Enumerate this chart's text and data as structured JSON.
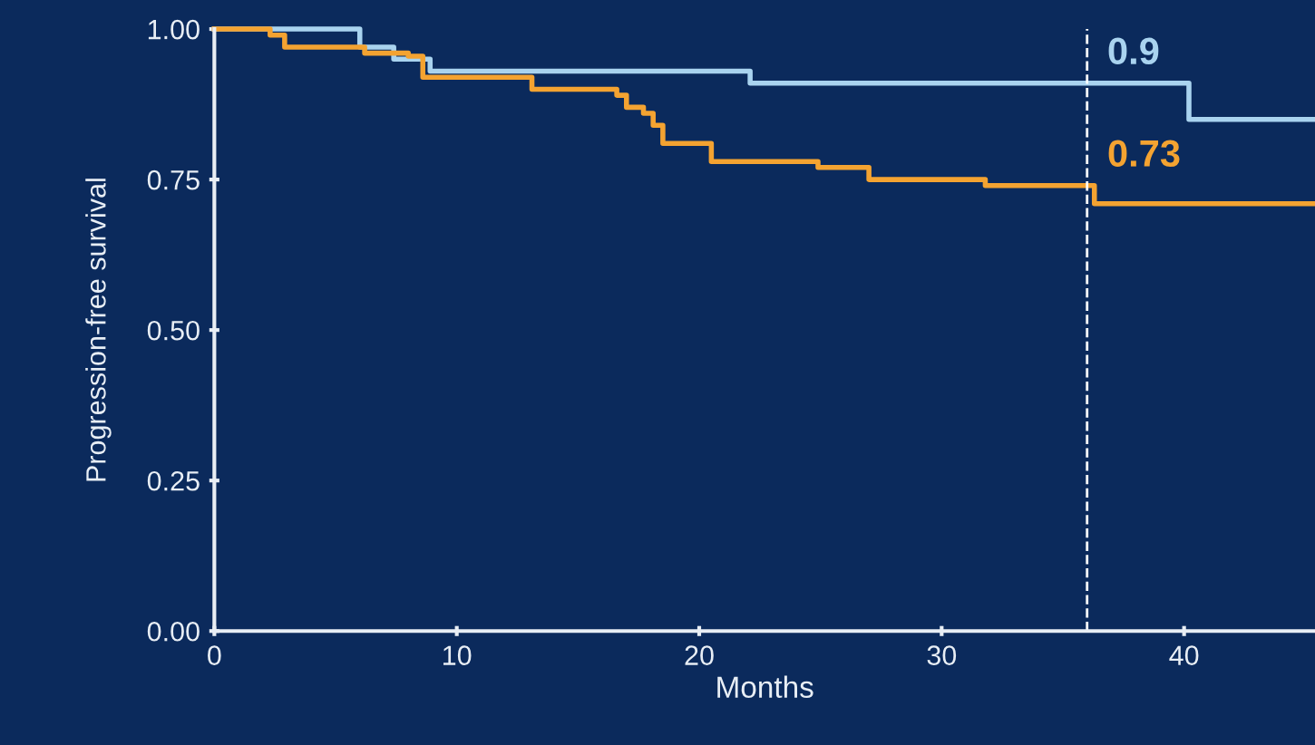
{
  "chart_data": {
    "type": "step",
    "xlabel": "Months",
    "ylabel": "Progression-free survival",
    "xlim": [
      0,
      45.4
    ],
    "ylim": [
      0,
      1
    ],
    "xticks": [
      0,
      10,
      20,
      30,
      40
    ],
    "yticks": [
      {
        "value": 0,
        "label": "0.00"
      },
      {
        "value": 0.25,
        "label": "0.25"
      },
      {
        "value": 0.5,
        "label": "0.50"
      },
      {
        "value": 0.75,
        "label": "0.75"
      },
      {
        "value": 1,
        "label": "1.00"
      }
    ],
    "grid": false,
    "marker": "none",
    "line_style": "solid",
    "series": [
      {
        "color": "#a9d3ef",
        "x": [
          0,
          6.0,
          7.4,
          8.9,
          22.1,
          40.2,
          45.4
        ],
        "values": [
          1.0,
          0.97,
          0.95,
          0.93,
          0.91,
          0.85,
          0.85
        ]
      },
      {
        "color": "#f4a331",
        "x": [
          0,
          2.3,
          2.9,
          6.2,
          8.0,
          8.6,
          13.1,
          16.6,
          17.0,
          17.7,
          18.1,
          18.5,
          20.5,
          24.9,
          27.0,
          31.8,
          36.3,
          45.4
        ],
        "values": [
          1.0,
          0.99,
          0.97,
          0.96,
          0.955,
          0.92,
          0.9,
          0.89,
          0.87,
          0.86,
          0.84,
          0.81,
          0.78,
          0.77,
          0.75,
          0.74,
          0.71,
          0.71
        ]
      }
    ],
    "ref_lines": [
      {
        "axis": "x",
        "value": 36,
        "color": "#ffffff",
        "line_style": "dashed"
      }
    ],
    "annotations": [
      {
        "text": "0.9",
        "x": 36,
        "y": 0.9
      },
      {
        "text": "0.73",
        "x": 36,
        "y": 0.73
      }
    ]
  }
}
